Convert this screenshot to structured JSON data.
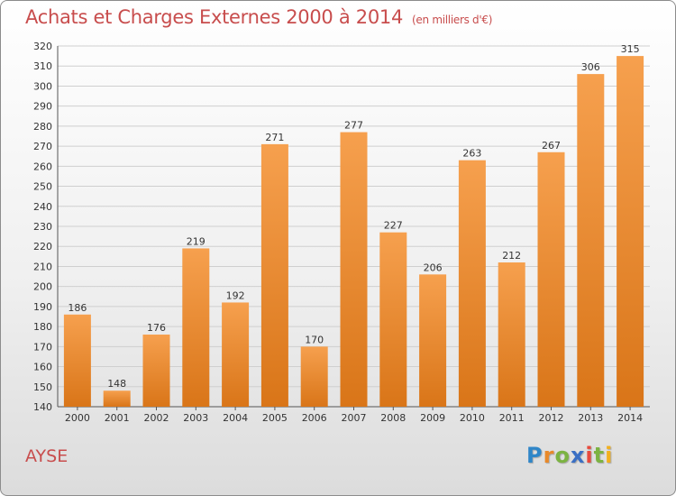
{
  "header": {
    "title": "Achats et Charges Externes 2000 à 2014",
    "unit": "(en milliers d'€)"
  },
  "footer": {
    "commune": "AYSE",
    "brand": "Proxiti"
  },
  "colors": {
    "bar_light": "#f6a04e",
    "bar_dark": "#d97518",
    "title": "#c84d4d"
  },
  "chart_data": {
    "type": "bar",
    "title": "Achats et Charges Externes 2000 à 2014",
    "subtitle": "(en milliers d'€)",
    "categories": [
      "2000",
      "2001",
      "2002",
      "2003",
      "2004",
      "2005",
      "2006",
      "2007",
      "2008",
      "2009",
      "2010",
      "2011",
      "2012",
      "2013",
      "2014"
    ],
    "values": [
      186,
      148,
      176,
      219,
      192,
      271,
      170,
      277,
      227,
      206,
      263,
      212,
      267,
      306,
      315
    ],
    "ylim": [
      140,
      320
    ],
    "yticks": [
      140,
      150,
      160,
      170,
      180,
      190,
      200,
      210,
      220,
      230,
      240,
      250,
      260,
      270,
      280,
      290,
      300,
      310,
      320
    ],
    "grid": true,
    "legend": "none"
  }
}
